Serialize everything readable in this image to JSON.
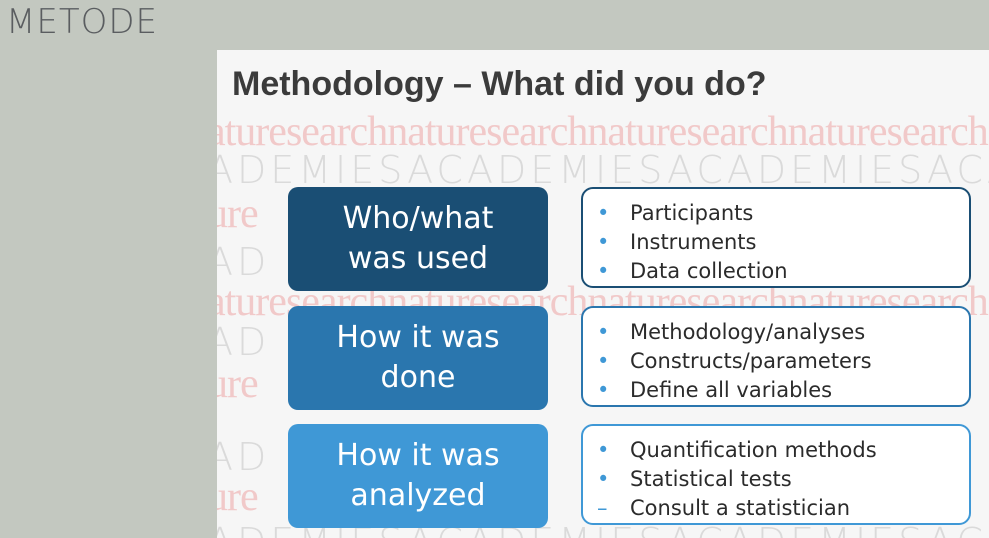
{
  "section_label": "METODE",
  "slide": {
    "title": "Methodology – What did you do?",
    "watermark": {
      "serif_line": "aturesearchnaturesearchnaturesearchnaturesearch",
      "sans_line": "ADEMIESACADEMIESACADEMIESACADEMI",
      "edge_sans": "AD",
      "edge_serif": "ure"
    },
    "boxes": [
      {
        "label": "Who/what\nwas used",
        "color": "#1a4e74"
      },
      {
        "label": "How it was\ndone",
        "color": "#2a76ae"
      },
      {
        "label": "How it was\nanalyzed",
        "color": "#3f98d6"
      }
    ],
    "panels": [
      {
        "items": [
          {
            "marker": "•",
            "text": "Participants"
          },
          {
            "marker": "•",
            "text": "Instruments"
          },
          {
            "marker": "•",
            "text": "Data collection"
          }
        ]
      },
      {
        "items": [
          {
            "marker": "•",
            "text": "Methodology/analyses"
          },
          {
            "marker": "•",
            "text": "Constructs/parameters"
          },
          {
            "marker": "•",
            "text": "Define all variables"
          }
        ]
      },
      {
        "items": [
          {
            "marker": "•",
            "text": "Quantification methods"
          },
          {
            "marker": "•",
            "text": "Statistical tests"
          },
          {
            "marker": "–",
            "text": "Consult a statistician"
          }
        ]
      }
    ]
  }
}
